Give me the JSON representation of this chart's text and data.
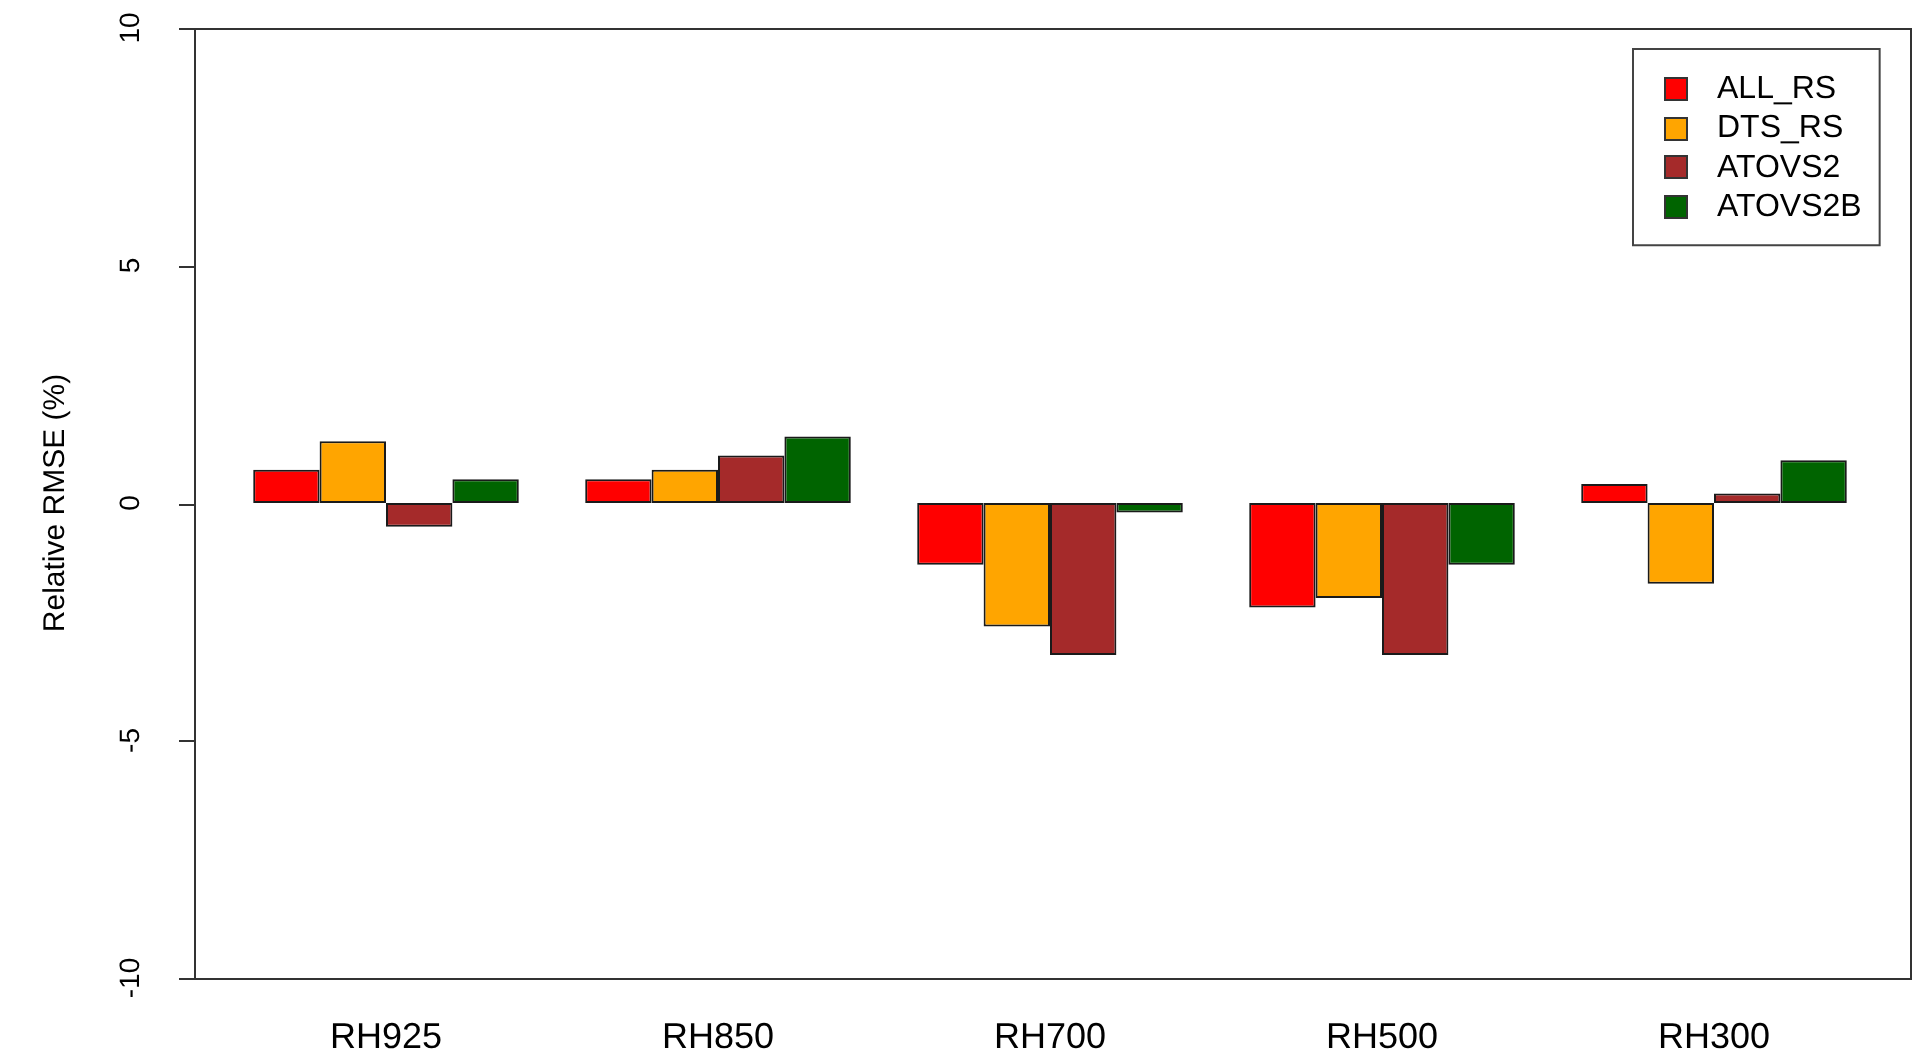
{
  "chart_data": {
    "type": "bar",
    "ylabel": "Relative RMSE (%)",
    "categories": [
      "RH925",
      "RH850",
      "RH700",
      "RH500",
      "RH300"
    ],
    "series": [
      {
        "name": "ALL_RS",
        "color": "#ff0000",
        "values": [
          0.7,
          0.5,
          -1.3,
          -2.2,
          0.4
        ]
      },
      {
        "name": "DTS_RS",
        "color": "#ffa500",
        "values": [
          1.3,
          0.7,
          -2.6,
          -2.0,
          -1.7
        ]
      },
      {
        "name": "ATOVS2",
        "color": "#a52a2a",
        "values": [
          -0.5,
          1.0,
          -3.2,
          -3.2,
          0.2
        ]
      },
      {
        "name": "ATOVS2B",
        "color": "#006400",
        "values": [
          0.5,
          1.4,
          -0.2,
          -1.3,
          0.9
        ]
      }
    ],
    "ylim": [
      -10,
      10
    ],
    "yticks": [
      -10,
      -5,
      0,
      5,
      10
    ],
    "grid": false,
    "legend": "top right"
  }
}
